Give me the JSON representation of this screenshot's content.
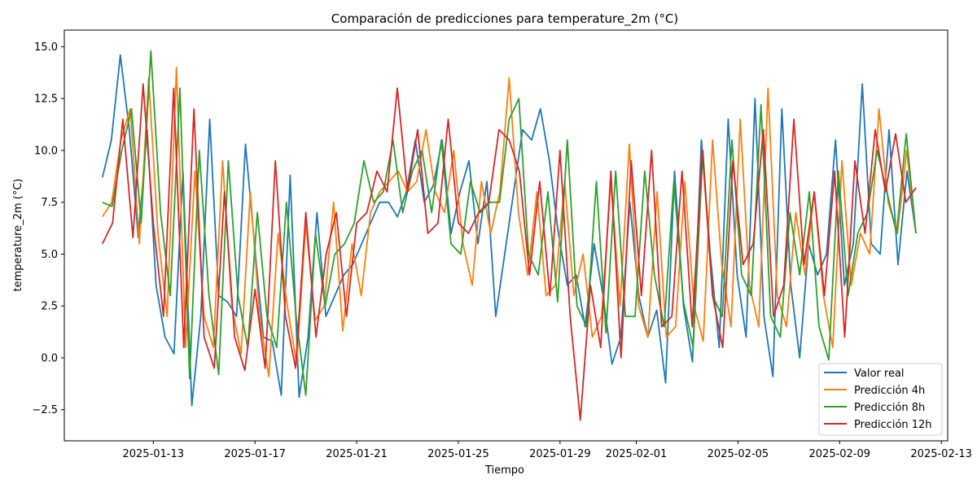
{
  "chart_data": {
    "type": "line",
    "title": "Comparación de predicciones para temperature_2m (°C)",
    "xlabel": "Tiempo",
    "ylabel": "temperature_2m (°C)",
    "x_axis": {
      "kind": "date",
      "start": "2025-01-11",
      "end": "2025-02-12",
      "step_days": 0.25,
      "xlim": [
        "2025-01-09T12:00",
        "2025-02-13T06:00"
      ],
      "ticks": [
        "2025-01-13",
        "2025-01-17",
        "2025-01-21",
        "2025-01-25",
        "2025-01-29",
        "2025-02-01",
        "2025-02-05",
        "2025-02-09",
        "2025-02-13"
      ]
    },
    "ylim": [
      -4.0,
      15.8
    ],
    "yticks": [
      -2.5,
      0.0,
      2.5,
      5.0,
      7.5,
      10.0,
      12.5,
      15.0
    ],
    "ytick_labels": [
      "−2.5",
      "0.0",
      "2.5",
      "5.0",
      "7.5",
      "10.0",
      "12.5",
      "15.0"
    ],
    "grid": false,
    "legend": "lower right",
    "series": [
      {
        "name": "Valor real",
        "color": "#1f77b4",
        "values": [
          8.7,
          10.5,
          14.6,
          11.0,
          5.8,
          11.0,
          3.5,
          1.0,
          0.2,
          9.0,
          -2.3,
          2.0,
          11.5,
          3.0,
          2.7,
          2.0,
          10.3,
          5.5,
          1.0,
          0.8,
          -1.8,
          8.8,
          -1.9,
          1.0,
          7.0,
          2.0,
          3.0,
          4.0,
          4.5,
          5.5,
          6.5,
          7.5,
          7.5,
          6.8,
          8.0,
          10.5,
          7.5,
          8.3,
          10.5,
          6.0,
          8.0,
          9.5,
          5.5,
          8.5,
          2.0,
          5.0,
          8.0,
          11.0,
          10.5,
          12.0,
          9.5,
          6.0,
          3.5,
          4.0,
          1.5,
          5.5,
          3.0,
          -0.3,
          1.0,
          7.5,
          3.0,
          1.0,
          2.3,
          -1.2,
          9.0,
          2.5,
          -0.2,
          10.5,
          5.0,
          0.5,
          11.5,
          4.0,
          1.0,
          12.5,
          2.0,
          -0.9,
          12.0,
          3.5,
          0.0,
          5.5,
          4.0,
          5.0,
          10.5,
          3.5,
          5.5,
          13.2,
          5.5,
          5.0,
          11.0,
          4.5,
          9.0,
          6.0
        ]
      },
      {
        "name": "Predicción 4h",
        "color": "#ff7f0e",
        "values": [
          6.8,
          7.5,
          10.5,
          12.0,
          5.5,
          13.5,
          6.0,
          2.0,
          14.0,
          0.5,
          9.0,
          2.0,
          0.5,
          9.5,
          2.5,
          0.2,
          8.0,
          2.0,
          -0.9,
          6.0,
          2.5,
          -0.3,
          6.5,
          1.8,
          2.5,
          7.5,
          1.3,
          5.5,
          3.0,
          7.0,
          8.0,
          8.5,
          9.0,
          8.0,
          8.5,
          11.0,
          8.0,
          7.0,
          10.0,
          5.5,
          3.5,
          8.5,
          6.0,
          8.0,
          13.5,
          7.0,
          4.0,
          8.0,
          3.0,
          3.5,
          8.5,
          3.0,
          5.0,
          1.0,
          2.0,
          8.5,
          2.5,
          10.3,
          2.5,
          1.0,
          8.0,
          1.0,
          1.5,
          8.5,
          2.5,
          0.8,
          10.5,
          4.5,
          1.5,
          11.5,
          3.5,
          1.5,
          13.0,
          3.0,
          1.5,
          7.0,
          4.0,
          8.0,
          3.0,
          0.5,
          9.5,
          3.5,
          6.0,
          5.0,
          12.0,
          7.5,
          6.0,
          10.0,
          6.0
        ]
      },
      {
        "name": "Predicción 8h",
        "color": "#2ca02c",
        "values": [
          7.5,
          7.3,
          10.0,
          12.0,
          6.5,
          14.8,
          7.0,
          3.0,
          13.0,
          -1.0,
          10.0,
          3.0,
          -0.8,
          9.5,
          3.0,
          0.5,
          7.0,
          2.0,
          0.5,
          7.5,
          2.0,
          -1.8,
          6.0,
          2.5,
          5.0,
          5.5,
          6.5,
          9.5,
          7.5,
          8.0,
          10.5,
          7.0,
          9.0,
          10.0,
          7.0,
          10.5,
          5.5,
          5.0,
          8.5,
          7.0,
          7.5,
          7.5,
          11.5,
          12.5,
          5.0,
          4.0,
          8.0,
          2.7,
          10.5,
          2.5,
          1.5,
          8.5,
          1.2,
          9.0,
          2.0,
          2.0,
          9.0,
          4.0,
          1.5,
          8.5,
          2.7,
          0.5,
          10.0,
          3.0,
          2.0,
          10.5,
          4.0,
          3.0,
          12.2,
          2.0,
          1.0,
          7.0,
          4.0,
          8.0,
          1.5,
          -0.1,
          9.0,
          3.0,
          6.0,
          7.0,
          10.0,
          8.0,
          6.0,
          10.8,
          6.0
        ]
      },
      {
        "name": "Predicción 12h",
        "color": "#d62728",
        "values": [
          5.5,
          6.5,
          11.5,
          5.8,
          13.2,
          6.5,
          2.0,
          13.0,
          0.5,
          12.0,
          1.0,
          -0.5,
          8.0,
          1.0,
          -0.6,
          3.3,
          -0.5,
          9.5,
          2.0,
          -0.5,
          7.0,
          1.0,
          5.0,
          7.0,
          2.0,
          6.5,
          7.0,
          9.0,
          8.0,
          13.0,
          8.0,
          11.0,
          6.0,
          6.5,
          11.5,
          6.5,
          6.0,
          7.0,
          7.5,
          11.0,
          10.5,
          9.0,
          4.0,
          8.5,
          3.0,
          10.0,
          2.0,
          -3.0,
          3.5,
          0.5,
          9.0,
          0.0,
          9.5,
          3.0,
          10.0,
          1.5,
          2.0,
          9.0,
          1.5,
          10.0,
          3.0,
          0.5,
          9.5,
          4.5,
          5.5,
          11.0,
          2.0,
          3.5,
          11.5,
          4.5,
          8.0,
          3.0,
          9.0,
          1.0,
          9.5,
          6.0,
          11.0,
          8.0,
          10.8,
          7.5,
          8.2
        ]
      }
    ]
  }
}
